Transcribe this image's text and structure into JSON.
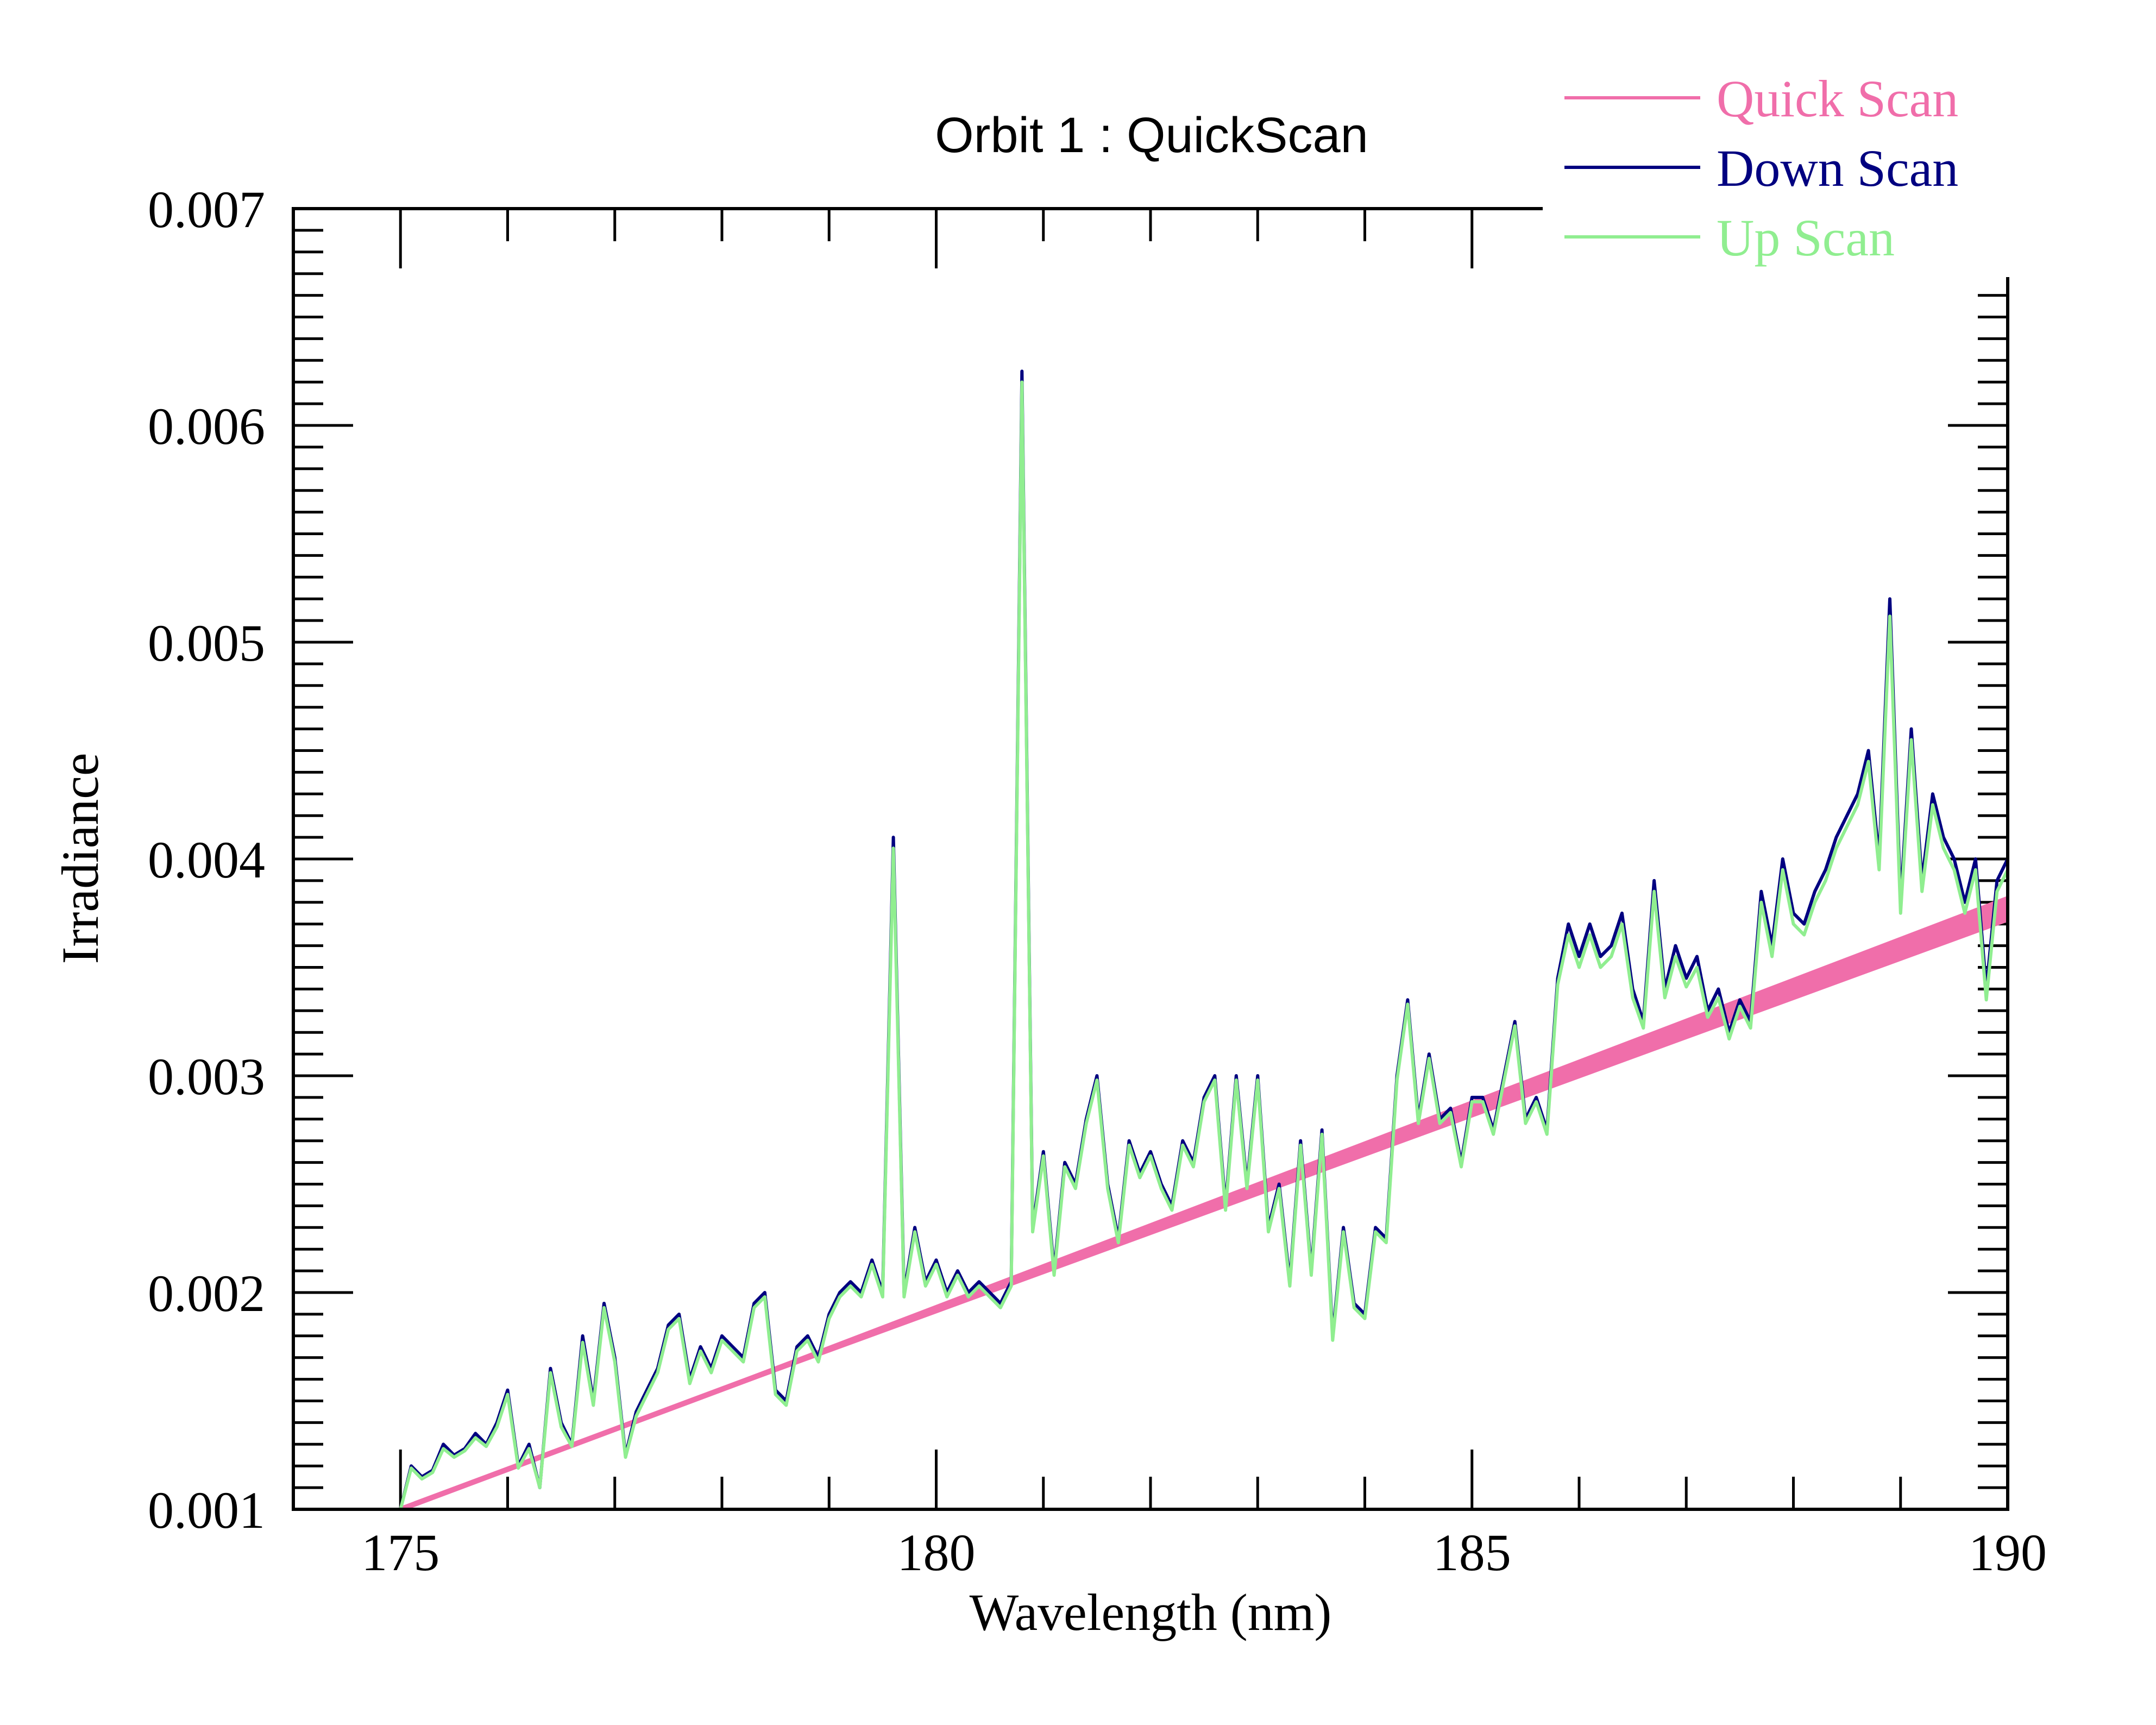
{
  "chart_data": {
    "type": "line",
    "title": "Orbit 1 : QuickScan",
    "xlabel": "Wavelength (nm)",
    "ylabel": "Irradiance",
    "xlim": [
      174,
      190
    ],
    "ylim": [
      0.001,
      0.007
    ],
    "x_ticks": [
      175,
      180,
      185,
      190
    ],
    "x_tick_labels": [
      "175",
      "180",
      "185",
      "190"
    ],
    "y_ticks": [
      0.001,
      0.002,
      0.003,
      0.004,
      0.005,
      0.006,
      0.007
    ],
    "y_tick_labels": [
      "0.001",
      "0.002",
      "0.003",
      "0.004",
      "0.005",
      "0.006",
      "0.007"
    ],
    "grid": false,
    "legend_position": "top-right",
    "colors": {
      "quick": "#f06eaa",
      "down": "#000080",
      "up": "#90ee90"
    },
    "series": [
      {
        "name": "Quick Scan",
        "color": "#f06eaa",
        "x": [
          175.0,
          190.0
        ],
        "y": [
          0.001,
          0.00377
        ],
        "band": [
          0.00383,
          0.00371
        ]
      },
      {
        "name": "Down Scan",
        "color": "#000080",
        "x": [
          175.0,
          175.1,
          175.2,
          175.3,
          175.4,
          175.5,
          175.6,
          175.7,
          175.8,
          175.9,
          176.0,
          176.1,
          176.2,
          176.3,
          176.4,
          176.5,
          176.6,
          176.7,
          176.8,
          176.9,
          177.0,
          177.1,
          177.2,
          177.3,
          177.4,
          177.5,
          177.6,
          177.7,
          177.8,
          177.9,
          178.0,
          178.1,
          178.2,
          178.3,
          178.4,
          178.5,
          178.6,
          178.7,
          178.8,
          178.9,
          179.0,
          179.1,
          179.2,
          179.3,
          179.4,
          179.5,
          179.6,
          179.7,
          179.8,
          179.9,
          180.0,
          180.1,
          180.2,
          180.3,
          180.4,
          180.5,
          180.6,
          180.7,
          180.8,
          180.9,
          181.0,
          181.1,
          181.2,
          181.3,
          181.4,
          181.5,
          181.6,
          181.7,
          181.8,
          181.9,
          182.0,
          182.1,
          182.2,
          182.3,
          182.4,
          182.5,
          182.6,
          182.7,
          182.8,
          182.9,
          183.0,
          183.1,
          183.2,
          183.3,
          183.4,
          183.5,
          183.6,
          183.7,
          183.8,
          183.9,
          184.0,
          184.1,
          184.2,
          184.3,
          184.4,
          184.5,
          184.6,
          184.7,
          184.8,
          184.9,
          185.0,
          185.1,
          185.2,
          185.3,
          185.4,
          185.5,
          185.6,
          185.7,
          185.8,
          185.9,
          186.0,
          186.1,
          186.2,
          186.3,
          186.4,
          186.5,
          186.6,
          186.7,
          186.8,
          186.9,
          187.0,
          187.1,
          187.2,
          187.3,
          187.4,
          187.5,
          187.6,
          187.7,
          187.8,
          187.9,
          188.0,
          188.1,
          188.2,
          188.3,
          188.4,
          188.5,
          188.6,
          188.7,
          188.8,
          188.9,
          189.0,
          189.1,
          189.2,
          189.3,
          189.4,
          189.5,
          189.6,
          189.7,
          189.8,
          189.9,
          190.0
        ],
        "y": [
          0.001,
          0.0012,
          0.00115,
          0.00118,
          0.0013,
          0.00125,
          0.00128,
          0.00135,
          0.0013,
          0.0014,
          0.00155,
          0.0012,
          0.0013,
          0.0011,
          0.00165,
          0.0014,
          0.0013,
          0.0018,
          0.0015,
          0.00195,
          0.0017,
          0.00125,
          0.00145,
          0.00155,
          0.00165,
          0.00185,
          0.0019,
          0.0016,
          0.00175,
          0.00165,
          0.0018,
          0.00175,
          0.0017,
          0.00195,
          0.002,
          0.00155,
          0.0015,
          0.00175,
          0.0018,
          0.0017,
          0.0019,
          0.002,
          0.00205,
          0.002,
          0.00215,
          0.002,
          0.0041,
          0.002,
          0.0023,
          0.00205,
          0.00215,
          0.002,
          0.0021,
          0.002,
          0.00205,
          0.002,
          0.00195,
          0.00205,
          0.00625,
          0.0023,
          0.00265,
          0.0021,
          0.0026,
          0.0025,
          0.0028,
          0.003,
          0.0025,
          0.00225,
          0.0027,
          0.00255,
          0.00265,
          0.0025,
          0.0024,
          0.0027,
          0.0026,
          0.0029,
          0.003,
          0.0024,
          0.003,
          0.0025,
          0.003,
          0.0023,
          0.0025,
          0.00205,
          0.0027,
          0.0021,
          0.00275,
          0.0018,
          0.0023,
          0.00195,
          0.0019,
          0.0023,
          0.00225,
          0.003,
          0.00335,
          0.0028,
          0.0031,
          0.0028,
          0.00285,
          0.0026,
          0.0029,
          0.0029,
          0.00275,
          0.003,
          0.00325,
          0.0028,
          0.0029,
          0.00275,
          0.00345,
          0.0037,
          0.00355,
          0.0037,
          0.00355,
          0.0036,
          0.00375,
          0.0034,
          0.00325,
          0.0039,
          0.0034,
          0.0036,
          0.00345,
          0.00355,
          0.0033,
          0.0034,
          0.0032,
          0.00335,
          0.00325,
          0.00385,
          0.0036,
          0.004,
          0.00375,
          0.0037,
          0.00385,
          0.00395,
          0.0041,
          0.0042,
          0.0043,
          0.0045,
          0.004,
          0.0052,
          0.0038,
          0.0046,
          0.0039,
          0.0043,
          0.0041,
          0.004,
          0.0038,
          0.004,
          0.0034,
          0.0039,
          0.004
        ]
      },
      {
        "name": "Up Scan",
        "color": "#90ee90",
        "x": [
          175.0,
          175.1,
          175.2,
          175.3,
          175.4,
          175.5,
          175.6,
          175.7,
          175.8,
          175.9,
          176.0,
          176.1,
          176.2,
          176.3,
          176.4,
          176.5,
          176.6,
          176.7,
          176.8,
          176.9,
          177.0,
          177.1,
          177.2,
          177.3,
          177.4,
          177.5,
          177.6,
          177.7,
          177.8,
          177.9,
          178.0,
          178.1,
          178.2,
          178.3,
          178.4,
          178.5,
          178.6,
          178.7,
          178.8,
          178.9,
          179.0,
          179.1,
          179.2,
          179.3,
          179.4,
          179.5,
          179.6,
          179.7,
          179.8,
          179.9,
          180.0,
          180.1,
          180.2,
          180.3,
          180.4,
          180.5,
          180.6,
          180.7,
          180.8,
          180.9,
          181.0,
          181.1,
          181.2,
          181.3,
          181.4,
          181.5,
          181.6,
          181.7,
          181.8,
          181.9,
          182.0,
          182.1,
          182.2,
          182.3,
          182.4,
          182.5,
          182.6,
          182.7,
          182.8,
          182.9,
          183.0,
          183.1,
          183.2,
          183.3,
          183.4,
          183.5,
          183.6,
          183.7,
          183.8,
          183.9,
          184.0,
          184.1,
          184.2,
          184.3,
          184.4,
          184.5,
          184.6,
          184.7,
          184.8,
          184.9,
          185.0,
          185.1,
          185.2,
          185.3,
          185.4,
          185.5,
          185.6,
          185.7,
          185.8,
          185.9,
          186.0,
          186.1,
          186.2,
          186.3,
          186.4,
          186.5,
          186.6,
          186.7,
          186.8,
          186.9,
          187.0,
          187.1,
          187.2,
          187.3,
          187.4,
          187.5,
          187.6,
          187.7,
          187.8,
          187.9,
          188.0,
          188.1,
          188.2,
          188.3,
          188.4,
          188.5,
          188.6,
          188.7,
          188.8,
          188.9,
          189.0,
          189.1,
          189.2,
          189.3,
          189.4,
          189.5,
          189.6,
          189.7,
          189.8,
          189.9,
          190.0
        ],
        "y": [
          0.001,
          0.00119,
          0.00114,
          0.00117,
          0.00128,
          0.00124,
          0.00127,
          0.00133,
          0.00129,
          0.00138,
          0.00153,
          0.00119,
          0.00128,
          0.0011,
          0.00163,
          0.00138,
          0.00129,
          0.00177,
          0.00148,
          0.00193,
          0.00168,
          0.00124,
          0.00143,
          0.00153,
          0.00163,
          0.00183,
          0.00188,
          0.00158,
          0.00173,
          0.00163,
          0.00178,
          0.00173,
          0.00168,
          0.00193,
          0.00198,
          0.00153,
          0.00148,
          0.00173,
          0.00178,
          0.00168,
          0.00188,
          0.00198,
          0.00203,
          0.00198,
          0.00213,
          0.00198,
          0.00405,
          0.00198,
          0.00228,
          0.00203,
          0.00213,
          0.00198,
          0.00208,
          0.00198,
          0.00203,
          0.00198,
          0.00193,
          0.00203,
          0.0062,
          0.00228,
          0.00263,
          0.00208,
          0.00258,
          0.00248,
          0.00278,
          0.00298,
          0.00248,
          0.00223,
          0.00268,
          0.00253,
          0.00263,
          0.00248,
          0.00238,
          0.00268,
          0.00258,
          0.00288,
          0.00298,
          0.00238,
          0.00298,
          0.00248,
          0.00298,
          0.00228,
          0.00248,
          0.00203,
          0.00268,
          0.00208,
          0.00273,
          0.00178,
          0.00228,
          0.00193,
          0.00188,
          0.00228,
          0.00223,
          0.00298,
          0.00333,
          0.00278,
          0.00308,
          0.00278,
          0.00283,
          0.00258,
          0.00288,
          0.00288,
          0.00273,
          0.00298,
          0.00323,
          0.00278,
          0.00288,
          0.00273,
          0.00342,
          0.00365,
          0.0035,
          0.00365,
          0.0035,
          0.00355,
          0.0037,
          0.00336,
          0.00322,
          0.00385,
          0.00336,
          0.00355,
          0.00341,
          0.0035,
          0.00327,
          0.00336,
          0.00317,
          0.00332,
          0.00322,
          0.0038,
          0.00355,
          0.00395,
          0.0037,
          0.00365,
          0.0038,
          0.0039,
          0.00405,
          0.00415,
          0.00425,
          0.00445,
          0.00395,
          0.00512,
          0.00375,
          0.00455,
          0.00385,
          0.00425,
          0.00405,
          0.00395,
          0.00375,
          0.00395,
          0.00335,
          0.00385,
          0.00395
        ]
      }
    ]
  }
}
